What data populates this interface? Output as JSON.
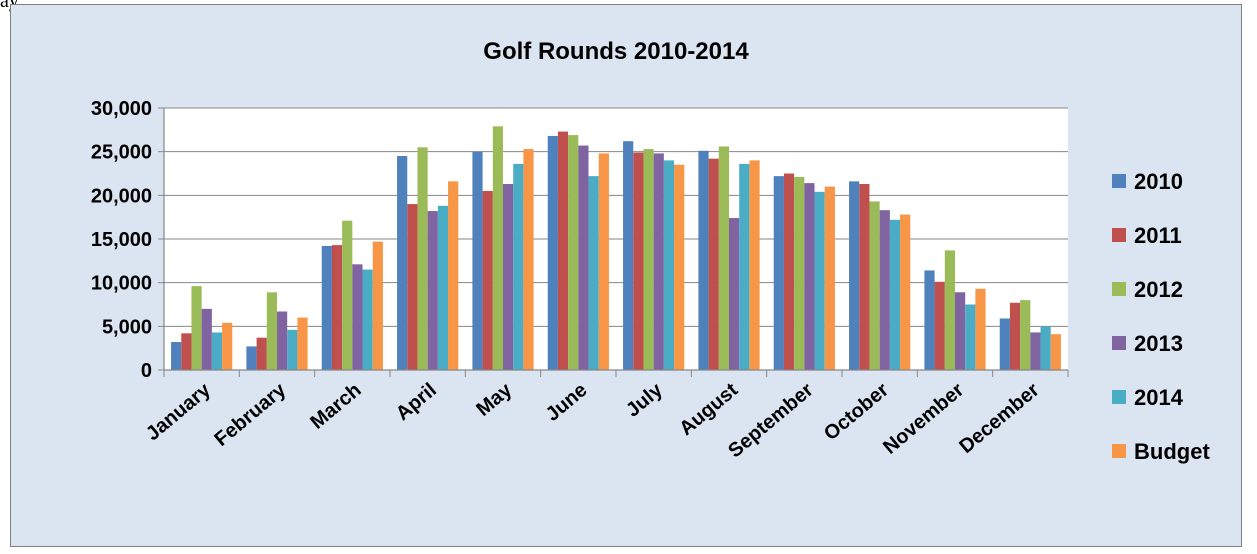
{
  "fragment_text": "ay",
  "chart_data": {
    "type": "bar",
    "title": "Golf Rounds 2010-2014",
    "xlabel": "",
    "ylabel": "",
    "ylim": [
      0,
      30000
    ],
    "yticks": [
      0,
      5000,
      10000,
      15000,
      20000,
      25000,
      30000
    ],
    "ytick_labels": [
      "0",
      "5,000",
      "10,000",
      "15,000",
      "20,000",
      "25,000",
      "30,000"
    ],
    "grid": "horizontal",
    "legend_position": "right",
    "categories": [
      "January",
      "February",
      "March",
      "April",
      "May",
      "June",
      "July",
      "August",
      "September",
      "October",
      "November",
      "December"
    ],
    "series": [
      {
        "name": "2010",
        "color": "#4f81bd",
        "values": [
          3200,
          2700,
          14200,
          24500,
          25000,
          26800,
          26200,
          25100,
          22200,
          21600,
          11400,
          5900
        ]
      },
      {
        "name": "2011",
        "color": "#c0504d",
        "values": [
          4200,
          3700,
          14300,
          19000,
          20500,
          27300,
          24900,
          24200,
          22500,
          21300,
          10100,
          7700
        ]
      },
      {
        "name": "2012",
        "color": "#9bbb59",
        "values": [
          9600,
          8900,
          17100,
          25500,
          27900,
          26900,
          25300,
          25600,
          22100,
          19300,
          13700,
          8000
        ]
      },
      {
        "name": "2013",
        "color": "#8064a2",
        "values": [
          7000,
          6700,
          12100,
          18200,
          21300,
          25700,
          24800,
          17400,
          21400,
          18300,
          8900,
          4300
        ]
      },
      {
        "name": "2014",
        "color": "#4bacc6",
        "values": [
          4300,
          4600,
          11500,
          18800,
          23600,
          22200,
          24000,
          23600,
          20400,
          17200,
          7500,
          5000
        ]
      },
      {
        "name": "Budget",
        "color": "#f79646",
        "values": [
          5400,
          6000,
          14700,
          21600,
          25300,
          24800,
          23500,
          24000,
          21000,
          17800,
          9300,
          4100
        ]
      }
    ]
  }
}
